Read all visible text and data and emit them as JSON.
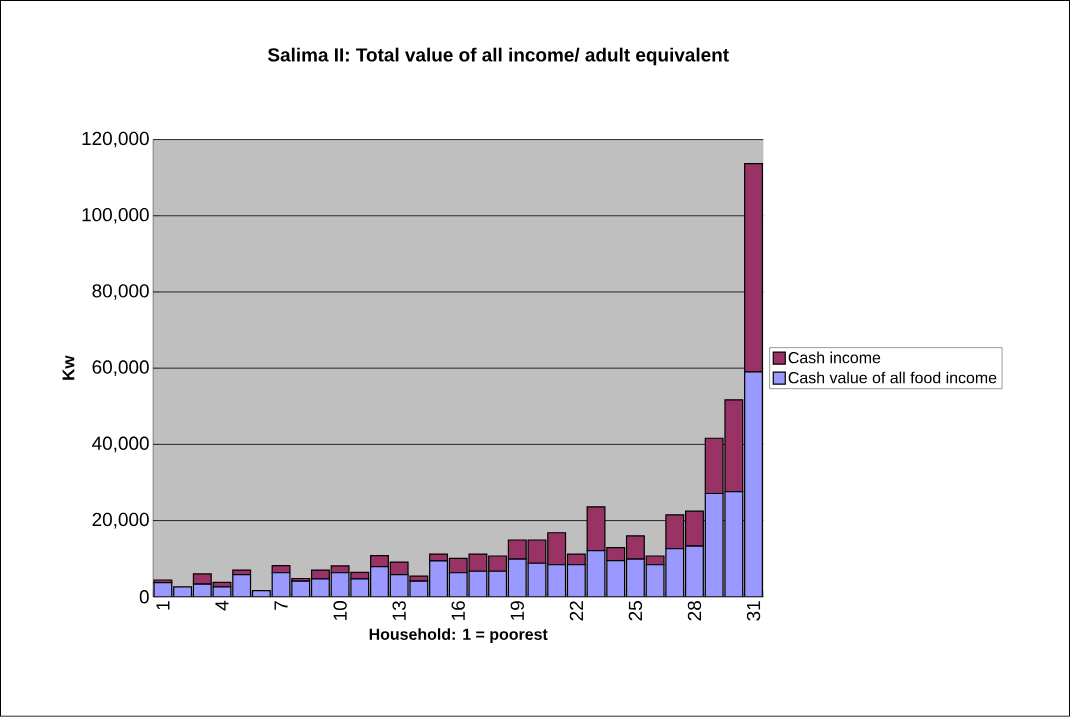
{
  "chart_data": {
    "type": "bar",
    "title": "Salima II: Total value of all income/ adult equivalent",
    "xlabel": "Household: 1 = poorest",
    "ylabel": "Kw",
    "categories": [
      "1",
      null,
      null,
      "4",
      null,
      null,
      "7",
      null,
      null,
      "10",
      null,
      null,
      "13",
      null,
      null,
      "16",
      null,
      null,
      "19",
      null,
      null,
      "22",
      null,
      null,
      "25",
      null,
      null,
      "28",
      null,
      null,
      "31"
    ],
    "series": [
      {
        "name": "Cash  value of all food income",
        "color": "#9999ff",
        "values": [
          3700,
          2600,
          3300,
          2600,
          5800,
          1600,
          6300,
          4100,
          4700,
          6300,
          4700,
          7900,
          5800,
          4100,
          9400,
          6300,
          6700,
          6700,
          9900,
          8800,
          8400,
          8400,
          12100,
          9500,
          9900,
          8400,
          12600,
          13300,
          27100,
          27600,
          59000
        ]
      },
      {
        "name": "Cash income",
        "color": "#993366",
        "values": [
          700,
          0,
          2700,
          1200,
          1200,
          0,
          1900,
          700,
          2300,
          1800,
          1700,
          2900,
          3300,
          1300,
          1800,
          3800,
          4500,
          4000,
          5000,
          6100,
          8400,
          2800,
          11500,
          3400,
          6100,
          2300,
          8900,
          9200,
          14500,
          24100,
          54700
        ]
      }
    ],
    "stacked": true,
    "ylim": [
      0,
      120000
    ],
    "yticks": [
      0,
      {
        "value": 20000,
        "label": "20,000"
      },
      {
        "value": 40000,
        "label": "40,000"
      },
      {
        "value": 60000,
        "label": "60,000"
      },
      {
        "value": 80000,
        "label": "80,000"
      },
      {
        "value": 100000,
        "label": "100,000"
      },
      {
        "value": 120000,
        "label": "120,000"
      }
    ],
    "grid": "y",
    "legend": "right"
  }
}
